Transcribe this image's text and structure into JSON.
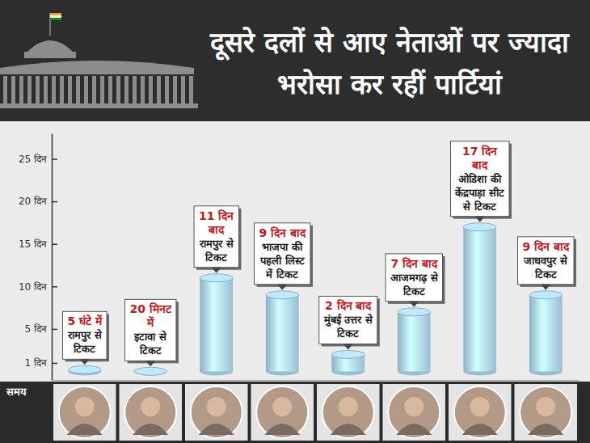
{
  "chart_data": {
    "type": "bar",
    "title": "दूसरे दलों से आए नेताओं पर ज्यादा भरोसा कर रहीं पार्टियां",
    "xlabel": "समय",
    "categories": [
      null,
      null,
      null,
      null,
      null,
      null,
      null,
      null
    ],
    "values": [
      0.208,
      0.014,
      11,
      9,
      2,
      7,
      17,
      9
    ],
    "value_labels": [
      "5 घंटे में",
      "20 मिनट में",
      "11 दिन बाद",
      "9 दिन बाद",
      "2 दिन बाद",
      "7 दिन बाद",
      "17 दिन बाद",
      "9 दिन बाद"
    ],
    "annotations": [
      "रामपुर से टिकट",
      "इटावा से टिकट",
      "रामपुर से टिकट",
      "भाजपा की पहली लिस्ट में टिकट",
      "मुंबई उत्तर से टिकट",
      "आजमगढ़ से टिकट",
      "ओडिशा की केंद्रपाड़ा सीट से टिकट",
      "जाधवपुर से टिकट"
    ],
    "color": "#a9d3ea",
    "ylim": [
      -1,
      28
    ],
    "yticks": [
      {
        "value": 1,
        "label": "1 दिन"
      },
      {
        "value": 5,
        "label": "5 दिन"
      },
      {
        "value": 10,
        "label": "10 दिन"
      },
      {
        "value": 15,
        "label": "15 दिन"
      },
      {
        "value": 20,
        "label": "20 दिन"
      },
      {
        "value": 25,
        "label": "25 दिन"
      }
    ],
    "grid": false,
    "data_labels": true
  }
}
